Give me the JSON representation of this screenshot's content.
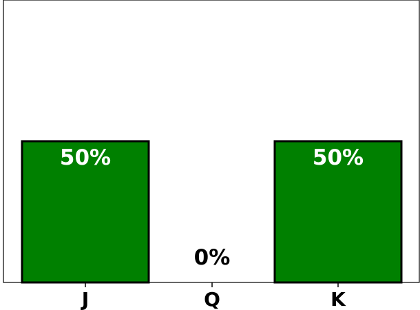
{
  "chart_data": {
    "type": "bar",
    "categories": [
      "J",
      "Q",
      "K"
    ],
    "values": [
      50,
      0,
      50
    ],
    "data_labels": [
      "50%",
      "0%",
      "50%"
    ],
    "ylim": [
      0,
      100
    ],
    "bar_color": "#008000",
    "bar_edge_color": "#000000",
    "inside_label_color": "#ffffff",
    "outside_label_color": "#000000",
    "grid": false,
    "y_ticks_visible": false,
    "title": "",
    "xlabel": "",
    "ylabel": ""
  }
}
